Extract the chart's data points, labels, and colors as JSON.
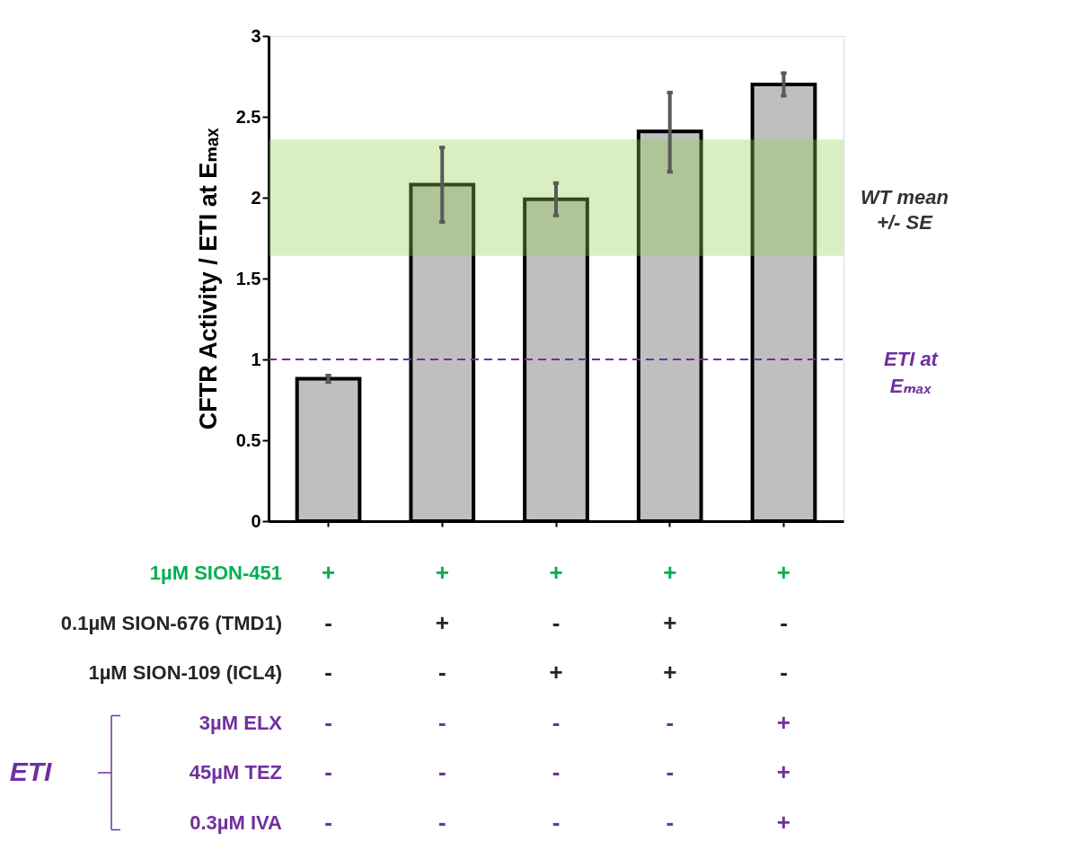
{
  "chart_data": {
    "type": "bar",
    "ylabel": "CFTR Activity / ETI at Eₘₐₓ",
    "categories": [
      "+\n-\n-\n-\n-\n-",
      "+\n+\n-\n-\n-\n-",
      "+\n-\n+\n-\n-\n-",
      "+\n+\n+\n-\n-\n-",
      "+\n-\n-\n+\n+\n+"
    ],
    "values": [
      0.88,
      2.08,
      1.99,
      2.41,
      2.7
    ],
    "color": "#bfbfbf",
    "errors": [
      0.02,
      0.23,
      0.1,
      [
        2.16,
        2.65
      ],
      [
        2.63,
        2.77
      ]
    ],
    "ylim": [
      0,
      3
    ],
    "yticks": [
      0,
      0.5,
      1,
      1.5,
      2,
      2.5,
      3
    ],
    "grid": false,
    "bands": [
      {
        "axis": "y",
        "from": 1.64,
        "to": 2.36,
        "label": "WT mean\n+/- SE",
        "color": "#92d050"
      }
    ],
    "ref_lines": [
      {
        "axis": "y",
        "value": 1,
        "label": "ETI at\nEₘₐₓ",
        "color": "#7030a0",
        "line_style": "dashed"
      }
    ],
    "annotations": [
      "1µM SION-451",
      "0.1µM SION-676 (TMD1)",
      "1µM SION-109 (ICL4)",
      "3µM ELX",
      "45µM TEZ",
      "0.3µM IVA",
      "ETI"
    ]
  }
}
